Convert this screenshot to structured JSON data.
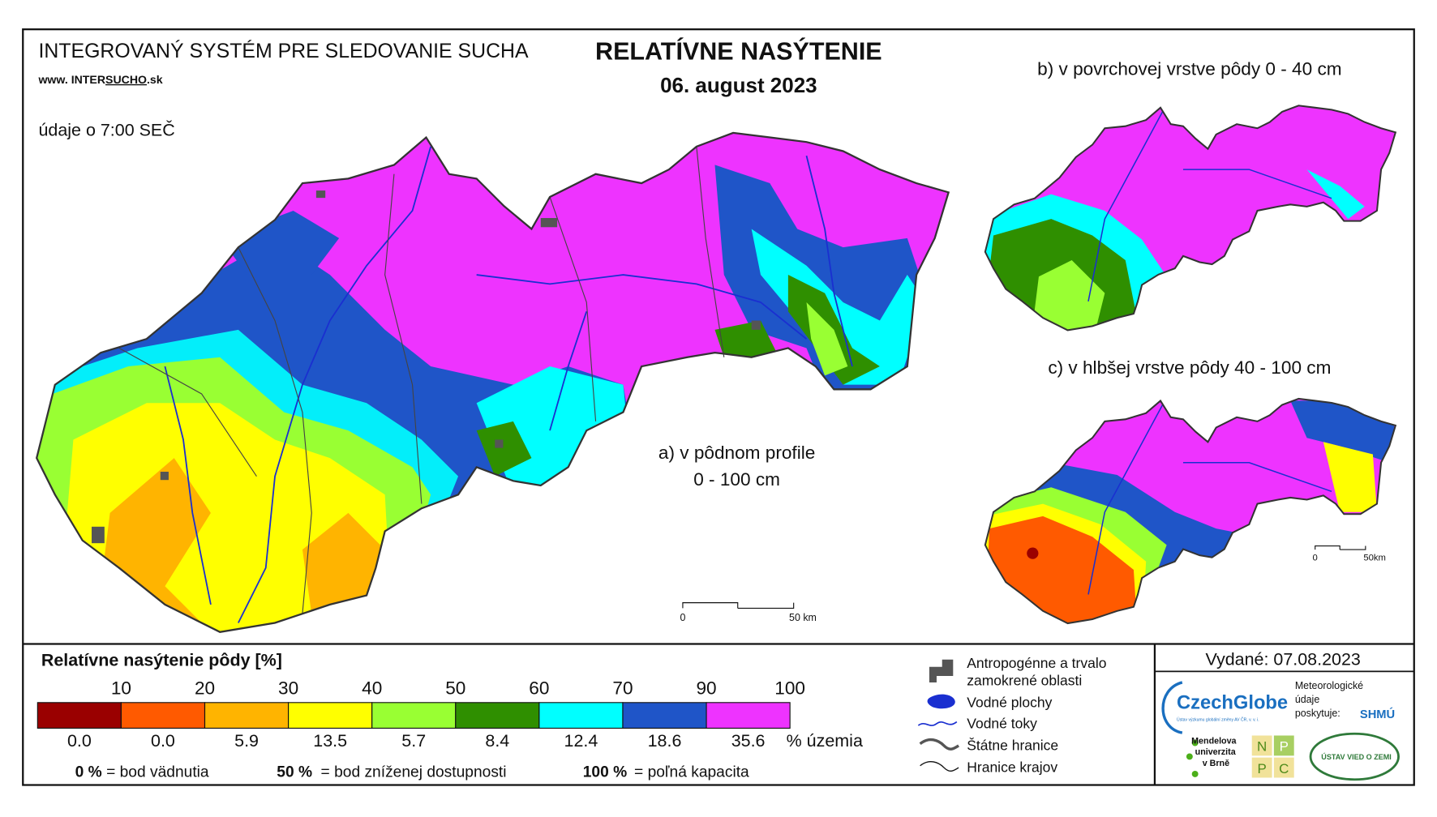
{
  "header": {
    "system_title": "INTEGROVANÝ SYSTÉM PRE SLEDOVANIE SUCHA",
    "website_prefix": "www. INTER",
    "website_highlight": "SUCHO",
    "website_suffix": ".sk",
    "time_note": "údaje o 7:00 SEČ"
  },
  "title": {
    "main": "RELATÍVNE NASÝTENIE",
    "date": "06. august 2023"
  },
  "maps": {
    "a_label_line1": "a) v pôdnom profile",
    "a_label_line2": "0 - 100 cm",
    "b_label": "b) v povrchovej vrstve pôdy 0 - 40 cm",
    "c_label": "c) v hlbšej vrstve pôdy 40 - 100 cm",
    "a_scale_zero": "0",
    "a_scale_end": "50 km",
    "c_scale_zero": "0",
    "c_scale_end": "50km"
  },
  "legend": {
    "title": "Relatívne nasýtenie pôdy [%]",
    "boundaries": [
      "10",
      "20",
      "30",
      "40",
      "50",
      "60",
      "70",
      "90",
      "100"
    ],
    "items": [
      {
        "color": "#9a0000",
        "share": "0.0"
      },
      {
        "color": "#ff5a00",
        "share": "0.0"
      },
      {
        "color": "#ffb400",
        "share": "5.9"
      },
      {
        "color": "#ffff00",
        "share": "13.5"
      },
      {
        "color": "#99ff33",
        "share": "5.7"
      },
      {
        "color": "#2f8f00",
        "share": "8.4"
      },
      {
        "color": "#00ffff",
        "share": "12.4"
      },
      {
        "color": "#1f55c8",
        "share": "18.6"
      },
      {
        "color": "#ee33ff",
        "share": "35.6"
      }
    ],
    "share_unit": "% územia",
    "definitions": [
      {
        "value": "0 %",
        "text": "= bod vädnutia"
      },
      {
        "value": "50 %",
        "text": "= bod zníženej dostupnosti"
      },
      {
        "value": "100 %",
        "text": "= poľná kapacita"
      }
    ]
  },
  "symbols": {
    "anthropogenic_line1": "Antropogénne a trvalo",
    "anthropogenic_line2": "zamokrené oblasti",
    "water_bodies": "Vodné plochy",
    "rivers": "Vodné toky",
    "state_border": "Štátne hranice",
    "region_border": "Hranice krajov"
  },
  "issued": "Vydané: 07.08.2023",
  "logos": {
    "czechglobe": "CzechGlobe",
    "czechglobe_sub": "Ústav výzkumu globální změny AV ČR, v. v. i.",
    "meteo_line1": "Meteorologické",
    "meteo_line2": "údaje",
    "meteo_line3": "poskytuje:",
    "shmu": "SHMÚ",
    "mendel_line1": "Mendelova",
    "mendel_line2": "univerzita",
    "mendel_line3": "v Brně",
    "nppc": [
      "N",
      "P",
      "P",
      "C"
    ],
    "uvz": "ÚSTAV VIED O ZEMI"
  }
}
